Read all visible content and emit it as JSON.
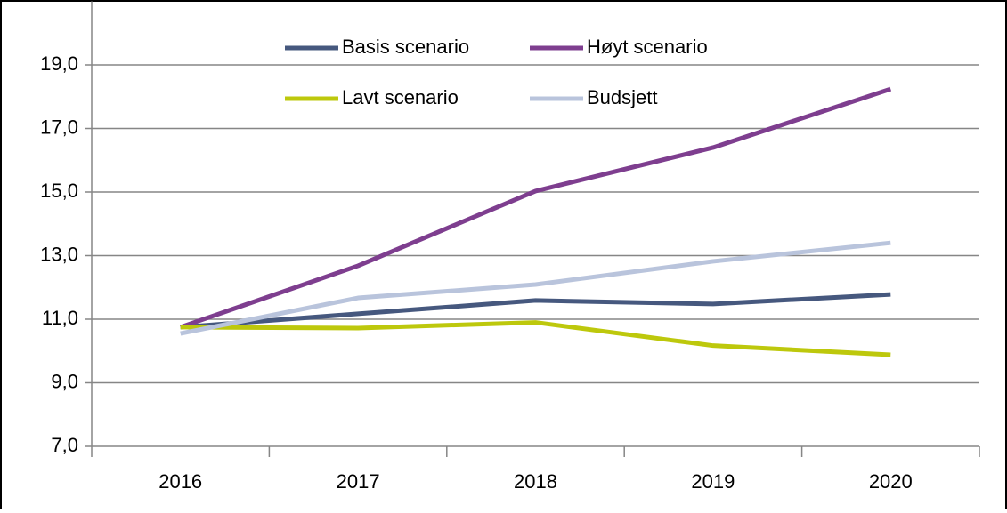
{
  "chart_data": {
    "type": "line",
    "categories": [
      "2016",
      "2017",
      "2018",
      "2019",
      "2020"
    ],
    "series": [
      {
        "name": "Basis scenario",
        "color": "#46587e",
        "values": [
          10.75,
          11.17,
          11.59,
          11.48,
          11.78
        ]
      },
      {
        "name": "Høyt scenario",
        "color": "#7e3e8f",
        "values": [
          10.75,
          12.68,
          15.03,
          16.4,
          18.24
        ]
      },
      {
        "name": "Lavt scenario",
        "color": "#bdc80c",
        "values": [
          10.75,
          10.72,
          10.9,
          10.17,
          9.88
        ]
      },
      {
        "name": "Budsjett",
        "color": "#b9c4dc",
        "values": [
          10.55,
          11.67,
          12.09,
          12.82,
          13.4
        ]
      }
    ],
    "ylim": [
      7,
      21
    ],
    "yticks": [
      {
        "value": 7,
        "label": "7,0"
      },
      {
        "value": 9,
        "label": "9,0"
      },
      {
        "value": 11,
        "label": "11,0"
      },
      {
        "value": 13,
        "label": "13,0"
      },
      {
        "value": 15,
        "label": "15,0"
      },
      {
        "value": 17,
        "label": "17,0"
      },
      {
        "value": 19,
        "label": "19,0"
      }
    ],
    "grid": true,
    "legend": "top"
  }
}
